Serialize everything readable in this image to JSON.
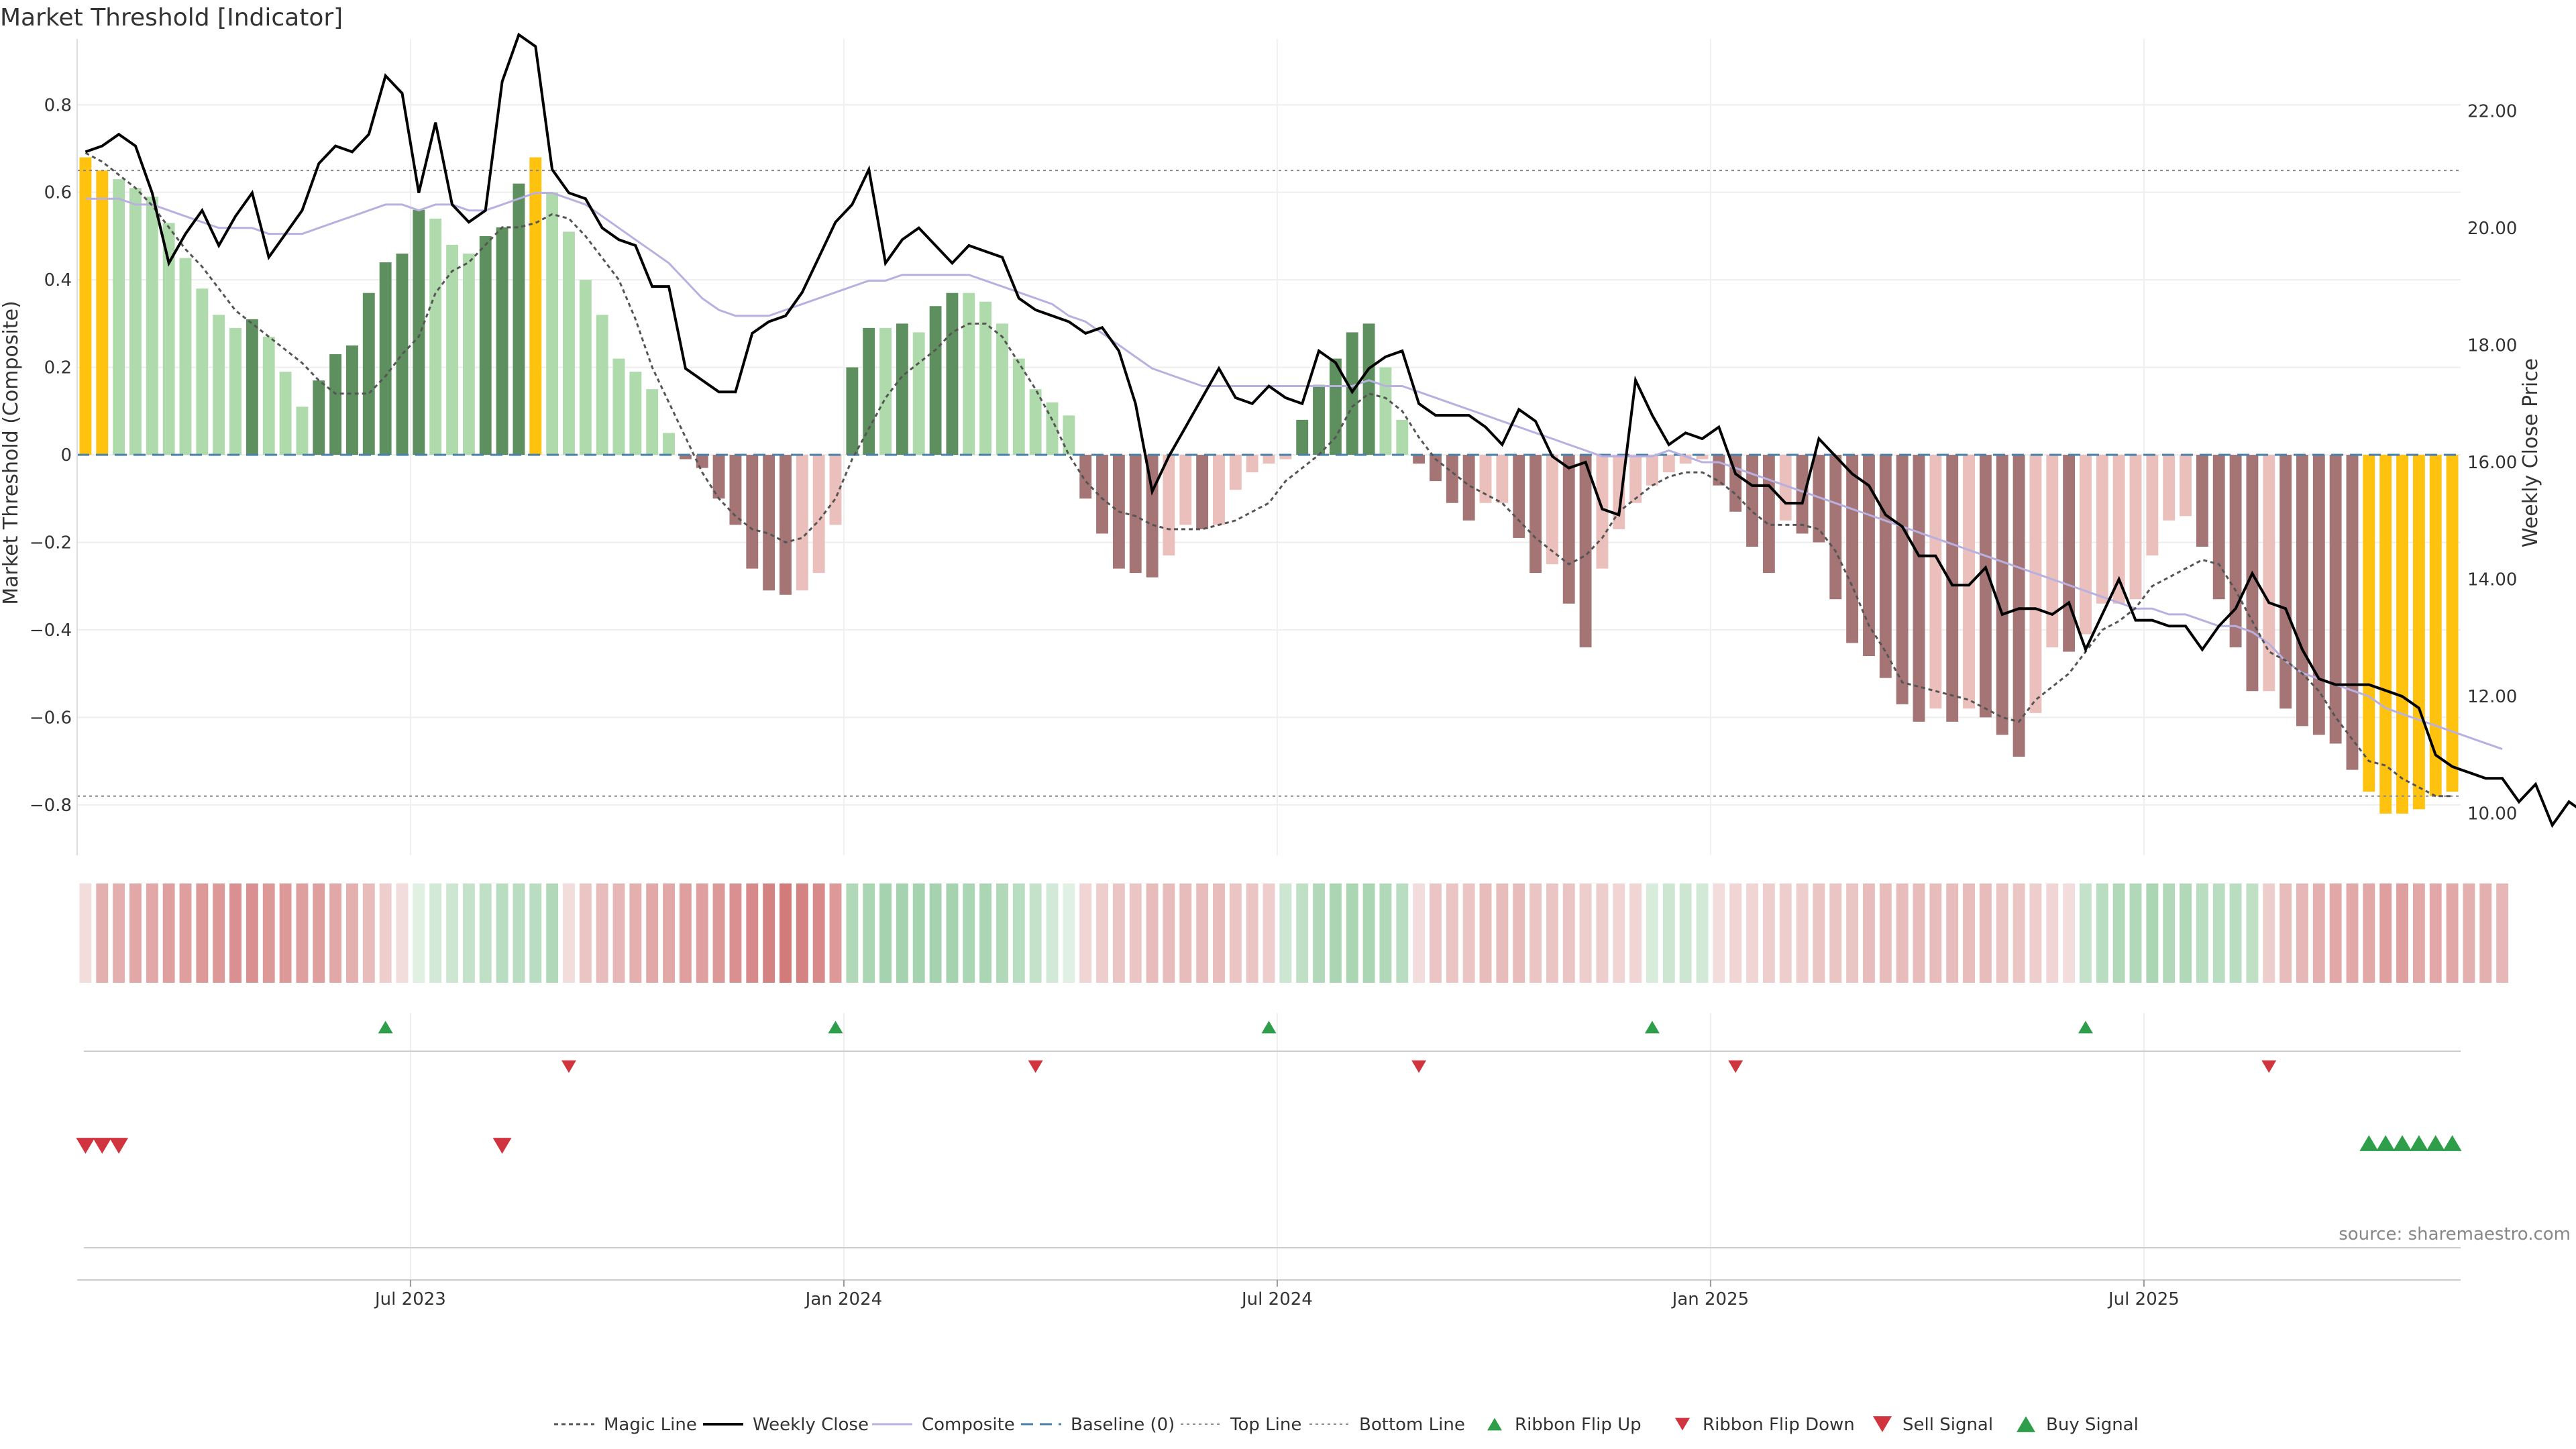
{
  "chart_data": {
    "type": "bar+line",
    "title": "Market Threshold [Indicator]",
    "ylabel_left": "Market Threshold (Composite)",
    "ylabel_right": "Weekly Close Price",
    "ylim_left": [
      -0.9,
      0.92
    ],
    "ylim_right": [
      9.4,
      23.0
    ],
    "yticks_left": [
      "0.8",
      "0.6",
      "0.4",
      "0.2",
      "0",
      "−0.2",
      "−0.4",
      "−0.6",
      "−0.8"
    ],
    "yticks_left_values": [
      0.8,
      0.6,
      0.4,
      0.2,
      0,
      -0.2,
      -0.4,
      -0.6,
      -0.8
    ],
    "yticks_right": [
      "22.00",
      "20.00",
      "18.00",
      "16.00",
      "14.00",
      "12.00",
      "10.00"
    ],
    "yticks_right_values": [
      22,
      20,
      18,
      16,
      14,
      12,
      10
    ],
    "xticks": [
      "Jul 2023",
      "Jan 2024",
      "Jul 2024",
      "Jan 2025",
      "Jul 2025"
    ],
    "xticks_week_index": [
      20,
      46,
      72,
      98,
      124
    ],
    "top_line": 0.65,
    "bottom_line": -0.78,
    "composite_bars": [
      0.68,
      0.65,
      0.63,
      0.61,
      0.59,
      0.53,
      0.45,
      0.38,
      0.32,
      0.29,
      0.31,
      0.27,
      0.19,
      0.11,
      0.17,
      0.23,
      0.25,
      0.37,
      0.44,
      0.46,
      0.56,
      0.54,
      0.48,
      0.46,
      0.5,
      0.52,
      0.62,
      0.68,
      0.6,
      0.51,
      0.4,
      0.32,
      0.22,
      0.19,
      0.15,
      0.05,
      -0.01,
      -0.03,
      -0.1,
      -0.16,
      -0.26,
      -0.31,
      -0.32,
      -0.31,
      -0.27,
      -0.16,
      0.2,
      0.29,
      0.29,
      0.3,
      0.28,
      0.34,
      0.37,
      0.37,
      0.35,
      0.3,
      0.22,
      0.15,
      0.12,
      0.09,
      -0.1,
      -0.18,
      -0.26,
      -0.27,
      -0.28,
      -0.23,
      -0.16,
      -0.17,
      -0.16,
      -0.08,
      -0.04,
      -0.02,
      -0.01,
      0.08,
      0.16,
      0.22,
      0.28,
      0.3,
      0.2,
      0.08,
      -0.02,
      -0.06,
      -0.11,
      -0.15,
      -0.11,
      -0.11,
      -0.19,
      -0.27,
      -0.25,
      -0.34,
      -0.44,
      -0.26,
      -0.17,
      -0.11,
      -0.07,
      -0.04,
      -0.02,
      -0.01,
      -0.07,
      -0.13,
      -0.21,
      -0.27,
      -0.15,
      -0.18,
      -0.2,
      -0.33,
      -0.43,
      -0.46,
      -0.51,
      -0.57,
      -0.61,
      -0.58,
      -0.61,
      -0.58,
      -0.6,
      -0.64,
      -0.69,
      -0.59,
      -0.44,
      -0.45,
      -0.41,
      -0.34,
      -0.34,
      -0.33,
      -0.23,
      -0.15,
      -0.14,
      -0.21,
      -0.33,
      -0.44,
      -0.54,
      -0.54,
      -0.58,
      -0.62,
      -0.64,
      -0.66,
      -0.72,
      -0.77,
      -0.82,
      -0.82,
      -0.81,
      -0.78,
      -0.77
    ],
    "weekly_close": [
      21.3,
      21.4,
      21.6,
      21.4,
      20.6,
      19.4,
      19.9,
      20.3,
      19.7,
      20.2,
      20.6,
      19.5,
      19.9,
      20.3,
      21.1,
      21.4,
      21.3,
      21.6,
      22.6,
      22.3,
      20.6,
      21.8,
      20.4,
      20.1,
      20.3,
      22.5,
      23.3,
      23.1,
      21.0,
      20.6,
      20.5,
      20.0,
      19.8,
      19.7,
      19.0,
      19.0,
      17.6,
      17.4,
      17.2,
      17.2,
      18.2,
      18.4,
      18.5,
      18.9,
      19.5,
      20.1,
      20.4,
      21.0,
      19.4,
      19.8,
      20.0,
      19.7,
      19.4,
      19.7,
      19.6,
      19.5,
      18.8,
      18.6,
      18.5,
      18.4,
      18.2,
      18.3,
      17.9,
      17.0,
      15.5,
      16.1,
      16.6,
      17.1,
      17.6,
      17.1,
      17.0,
      17.3,
      17.1,
      17.0,
      17.9,
      17.7,
      17.2,
      17.6,
      17.8,
      17.9,
      17.0,
      16.8,
      16.8,
      16.8,
      16.6,
      16.3,
      16.9,
      16.7,
      16.1,
      15.9,
      16.0,
      15.2,
      15.1,
      17.4,
      16.8,
      16.3,
      16.5,
      16.4,
      16.6,
      15.8,
      15.6,
      15.6,
      15.3,
      15.3,
      16.4,
      16.1,
      15.8,
      15.6,
      15.1,
      14.9,
      14.4,
      14.4,
      13.9,
      13.9,
      14.2,
      13.4,
      13.5,
      13.5,
      13.4,
      13.6,
      12.8,
      13.4,
      14.0,
      13.3,
      13.3,
      13.2,
      13.2,
      12.8,
      13.2,
      13.5,
      14.1,
      13.6,
      13.5,
      12.8,
      12.3,
      12.2,
      12.2,
      12.2,
      12.1,
      12.0,
      11.8,
      11.0,
      10.8,
      10.7,
      10.6,
      10.6,
      10.2,
      10.5,
      9.8,
      10.2,
      10.0
    ],
    "magic_line": [
      0.69,
      0.67,
      0.64,
      0.61,
      0.57,
      0.52,
      0.47,
      0.43,
      0.38,
      0.33,
      0.3,
      0.27,
      0.24,
      0.21,
      0.17,
      0.14,
      0.14,
      0.14,
      0.18,
      0.23,
      0.27,
      0.37,
      0.42,
      0.44,
      0.48,
      0.52,
      0.52,
      0.53,
      0.55,
      0.54,
      0.5,
      0.45,
      0.4,
      0.31,
      0.2,
      0.12,
      0.04,
      -0.04,
      -0.1,
      -0.14,
      -0.17,
      -0.18,
      -0.2,
      -0.19,
      -0.15,
      -0.1,
      -0.01,
      0.06,
      0.13,
      0.18,
      0.21,
      0.24,
      0.28,
      0.3,
      0.3,
      0.27,
      0.21,
      0.15,
      0.08,
      0.0,
      -0.06,
      -0.1,
      -0.13,
      -0.14,
      -0.16,
      -0.17,
      -0.17,
      -0.17,
      -0.16,
      -0.15,
      -0.13,
      -0.11,
      -0.06,
      -0.03,
      0.0,
      0.04,
      0.11,
      0.14,
      0.13,
      0.1,
      0.04,
      -0.01,
      -0.04,
      -0.07,
      -0.09,
      -0.11,
      -0.15,
      -0.19,
      -0.22,
      -0.25,
      -0.23,
      -0.19,
      -0.13,
      -0.1,
      -0.07,
      -0.05,
      -0.04,
      -0.04,
      -0.06,
      -0.09,
      -0.13,
      -0.16,
      -0.16,
      -0.16,
      -0.17,
      -0.22,
      -0.3,
      -0.39,
      -0.45,
      -0.52,
      -0.53,
      -0.54,
      -0.55,
      -0.56,
      -0.58,
      -0.6,
      -0.61,
      -0.56,
      -0.53,
      -0.5,
      -0.45,
      -0.4,
      -0.38,
      -0.35,
      -0.3,
      -0.28,
      -0.26,
      -0.24,
      -0.25,
      -0.31,
      -0.38,
      -0.45,
      -0.47,
      -0.5,
      -0.54,
      -0.6,
      -0.65,
      -0.7,
      -0.71,
      -0.74,
      -0.76,
      -0.78,
      -0.78
    ],
    "composite_line_price": [
      20.5,
      20.5,
      20.5,
      20.4,
      20.4,
      20.3,
      20.2,
      20.1,
      20.0,
      20.0,
      20.0,
      19.9,
      19.9,
      19.9,
      20.0,
      20.1,
      20.2,
      20.3,
      20.4,
      20.4,
      20.3,
      20.4,
      20.4,
      20.3,
      20.3,
      20.4,
      20.5,
      20.6,
      20.6,
      20.5,
      20.4,
      20.2,
      20.0,
      19.8,
      19.6,
      19.4,
      19.1,
      18.8,
      18.6,
      18.5,
      18.5,
      18.5,
      18.6,
      18.7,
      18.8,
      18.9,
      19.0,
      19.1,
      19.1,
      19.2,
      19.2,
      19.2,
      19.2,
      19.2,
      19.1,
      19.0,
      18.9,
      18.8,
      18.7,
      18.5,
      18.4,
      18.2,
      18.0,
      17.8,
      17.6,
      17.5,
      17.4,
      17.3,
      17.3,
      17.3,
      17.3,
      17.3,
      17.3,
      17.3,
      17.3,
      17.3,
      17.3,
      17.4,
      17.3,
      17.3,
      17.2,
      17.1,
      17.0,
      16.9,
      16.8,
      16.7,
      16.6,
      16.5,
      16.4,
      16.3,
      16.2,
      16.1,
      16.1,
      16.1,
      16.1,
      16.2,
      16.1,
      16.0,
      16.0,
      15.9,
      15.8,
      15.7,
      15.6,
      15.5,
      15.4,
      15.3,
      15.2,
      15.1,
      15.0,
      14.9,
      14.8,
      14.7,
      14.6,
      14.5,
      14.4,
      14.3,
      14.2,
      14.1,
      14.0,
      13.9,
      13.8,
      13.7,
      13.6,
      13.5,
      13.5,
      13.4,
      13.4,
      13.3,
      13.2,
      13.2,
      13.1,
      12.9,
      12.6,
      12.4,
      12.3,
      12.2,
      12.1,
      12.0,
      11.8,
      11.7,
      11.6,
      11.5,
      11.4,
      11.3,
      11.2,
      11.1
    ],
    "ribbon": [
      -0.15,
      -0.45,
      -0.45,
      -0.5,
      -0.5,
      -0.55,
      -0.55,
      -0.6,
      -0.6,
      -0.65,
      -0.65,
      -0.6,
      -0.6,
      -0.55,
      -0.55,
      -0.5,
      -0.45,
      -0.35,
      -0.25,
      -0.15,
      0.15,
      0.25,
      0.3,
      0.35,
      0.4,
      0.45,
      0.45,
      0.45,
      0.5,
      -0.15,
      -0.3,
      -0.35,
      -0.4,
      -0.45,
      -0.5,
      -0.5,
      -0.55,
      -0.55,
      -0.6,
      -0.65,
      -0.7,
      -0.75,
      -0.8,
      -0.75,
      -0.7,
      -0.6,
      0.5,
      0.55,
      0.6,
      0.6,
      0.6,
      0.6,
      0.6,
      0.55,
      0.55,
      0.5,
      0.45,
      0.35,
      0.25,
      0.15,
      -0.2,
      -0.25,
      -0.3,
      -0.3,
      -0.35,
      -0.35,
      -0.35,
      -0.35,
      -0.35,
      -0.3,
      -0.3,
      -0.25,
      0.3,
      0.4,
      0.5,
      0.55,
      0.55,
      0.55,
      0.5,
      0.45,
      -0.15,
      -0.3,
      -0.3,
      -0.3,
      -0.35,
      -0.35,
      -0.35,
      -0.3,
      -0.3,
      -0.3,
      -0.25,
      -0.25,
      -0.2,
      -0.2,
      0.2,
      0.3,
      0.3,
      0.25,
      -0.15,
      -0.2,
      -0.2,
      -0.25,
      -0.25,
      -0.25,
      -0.3,
      -0.3,
      -0.3,
      -0.35,
      -0.35,
      -0.35,
      -0.35,
      -0.35,
      -0.35,
      -0.35,
      -0.35,
      -0.3,
      -0.3,
      -0.25,
      -0.2,
      -0.15,
      0.35,
      0.45,
      0.5,
      0.5,
      0.55,
      0.5,
      0.5,
      0.45,
      0.45,
      0.45,
      0.4,
      -0.25,
      -0.35,
      -0.4,
      -0.45,
      -0.5,
      -0.5,
      -0.5,
      -0.55,
      -0.55,
      -0.5,
      -0.5,
      -0.5,
      -0.45,
      -0.45,
      -0.4
    ],
    "ribbon_flip_up": [
      18,
      45,
      71,
      94,
      120
    ],
    "ribbon_flip_down": [
      29,
      57,
      80,
      99,
      131
    ],
    "sell_signals": [
      0,
      1,
      2,
      25
    ],
    "buy_signals": [
      137,
      138,
      139,
      140,
      141,
      142
    ],
    "legend": [
      "Magic Line",
      "Weekly Close",
      "Composite",
      "Baseline (0)",
      "Top Line",
      "Bottom Line",
      "Ribbon Flip Up",
      "Ribbon Flip Down",
      "Sell Signal",
      "Buy Signal"
    ],
    "source": "source: sharemaestro.com",
    "colors": {
      "extreme": "#FFC20E",
      "pos_strong": "#5E8F5E",
      "pos_weak": "#AFDAAB",
      "neg_strong": "#A57575",
      "neg_weak": "#EBBFBB",
      "magic": "#555555",
      "close": "#000000",
      "composite": "#B7B0E0",
      "baseline": "#4A7FA8",
      "up_marker": "#2E9E4A",
      "down_marker": "#D0343E"
    }
  }
}
